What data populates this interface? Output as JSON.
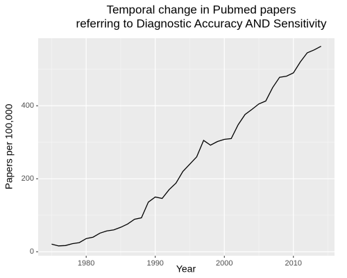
{
  "chart_data": {
    "type": "line",
    "title": [
      "Temporal change in Pubmed papers",
      "referring to Diagnostic Accuracy AND Sensitivity"
    ],
    "x_label": "Year",
    "y_label": "Papers per 100,000",
    "x": [
      1975,
      1976,
      1977,
      1978,
      1979,
      1980,
      1981,
      1982,
      1983,
      1984,
      1985,
      1986,
      1987,
      1988,
      1989,
      1990,
      1991,
      1992,
      1993,
      1994,
      1995,
      1996,
      1997,
      1998,
      1999,
      2000,
      2001,
      2002,
      2003,
      2004,
      2005,
      2006,
      2007,
      2008,
      2009,
      2010,
      2011,
      2012,
      2013,
      2014
    ],
    "series": [
      {
        "color": "#000000",
        "values": [
          21,
          16,
          17,
          22,
          25,
          36,
          40,
          51,
          57,
          60,
          67,
          76,
          89,
          93,
          136,
          150,
          146,
          170,
          188,
          220,
          240,
          260,
          305,
          292,
          302,
          308,
          310,
          348,
          376,
          390,
          405,
          413,
          450,
          478,
          481,
          490,
          520,
          545,
          553,
          563
        ]
      }
    ],
    "xlim": [
      1973.05,
      2015.95
    ],
    "xticks": [
      1980,
      1990,
      2000,
      2010
    ],
    "ylim": [
      -11,
      585
    ],
    "yticks": [
      0,
      200,
      400
    ],
    "grid": true
  }
}
